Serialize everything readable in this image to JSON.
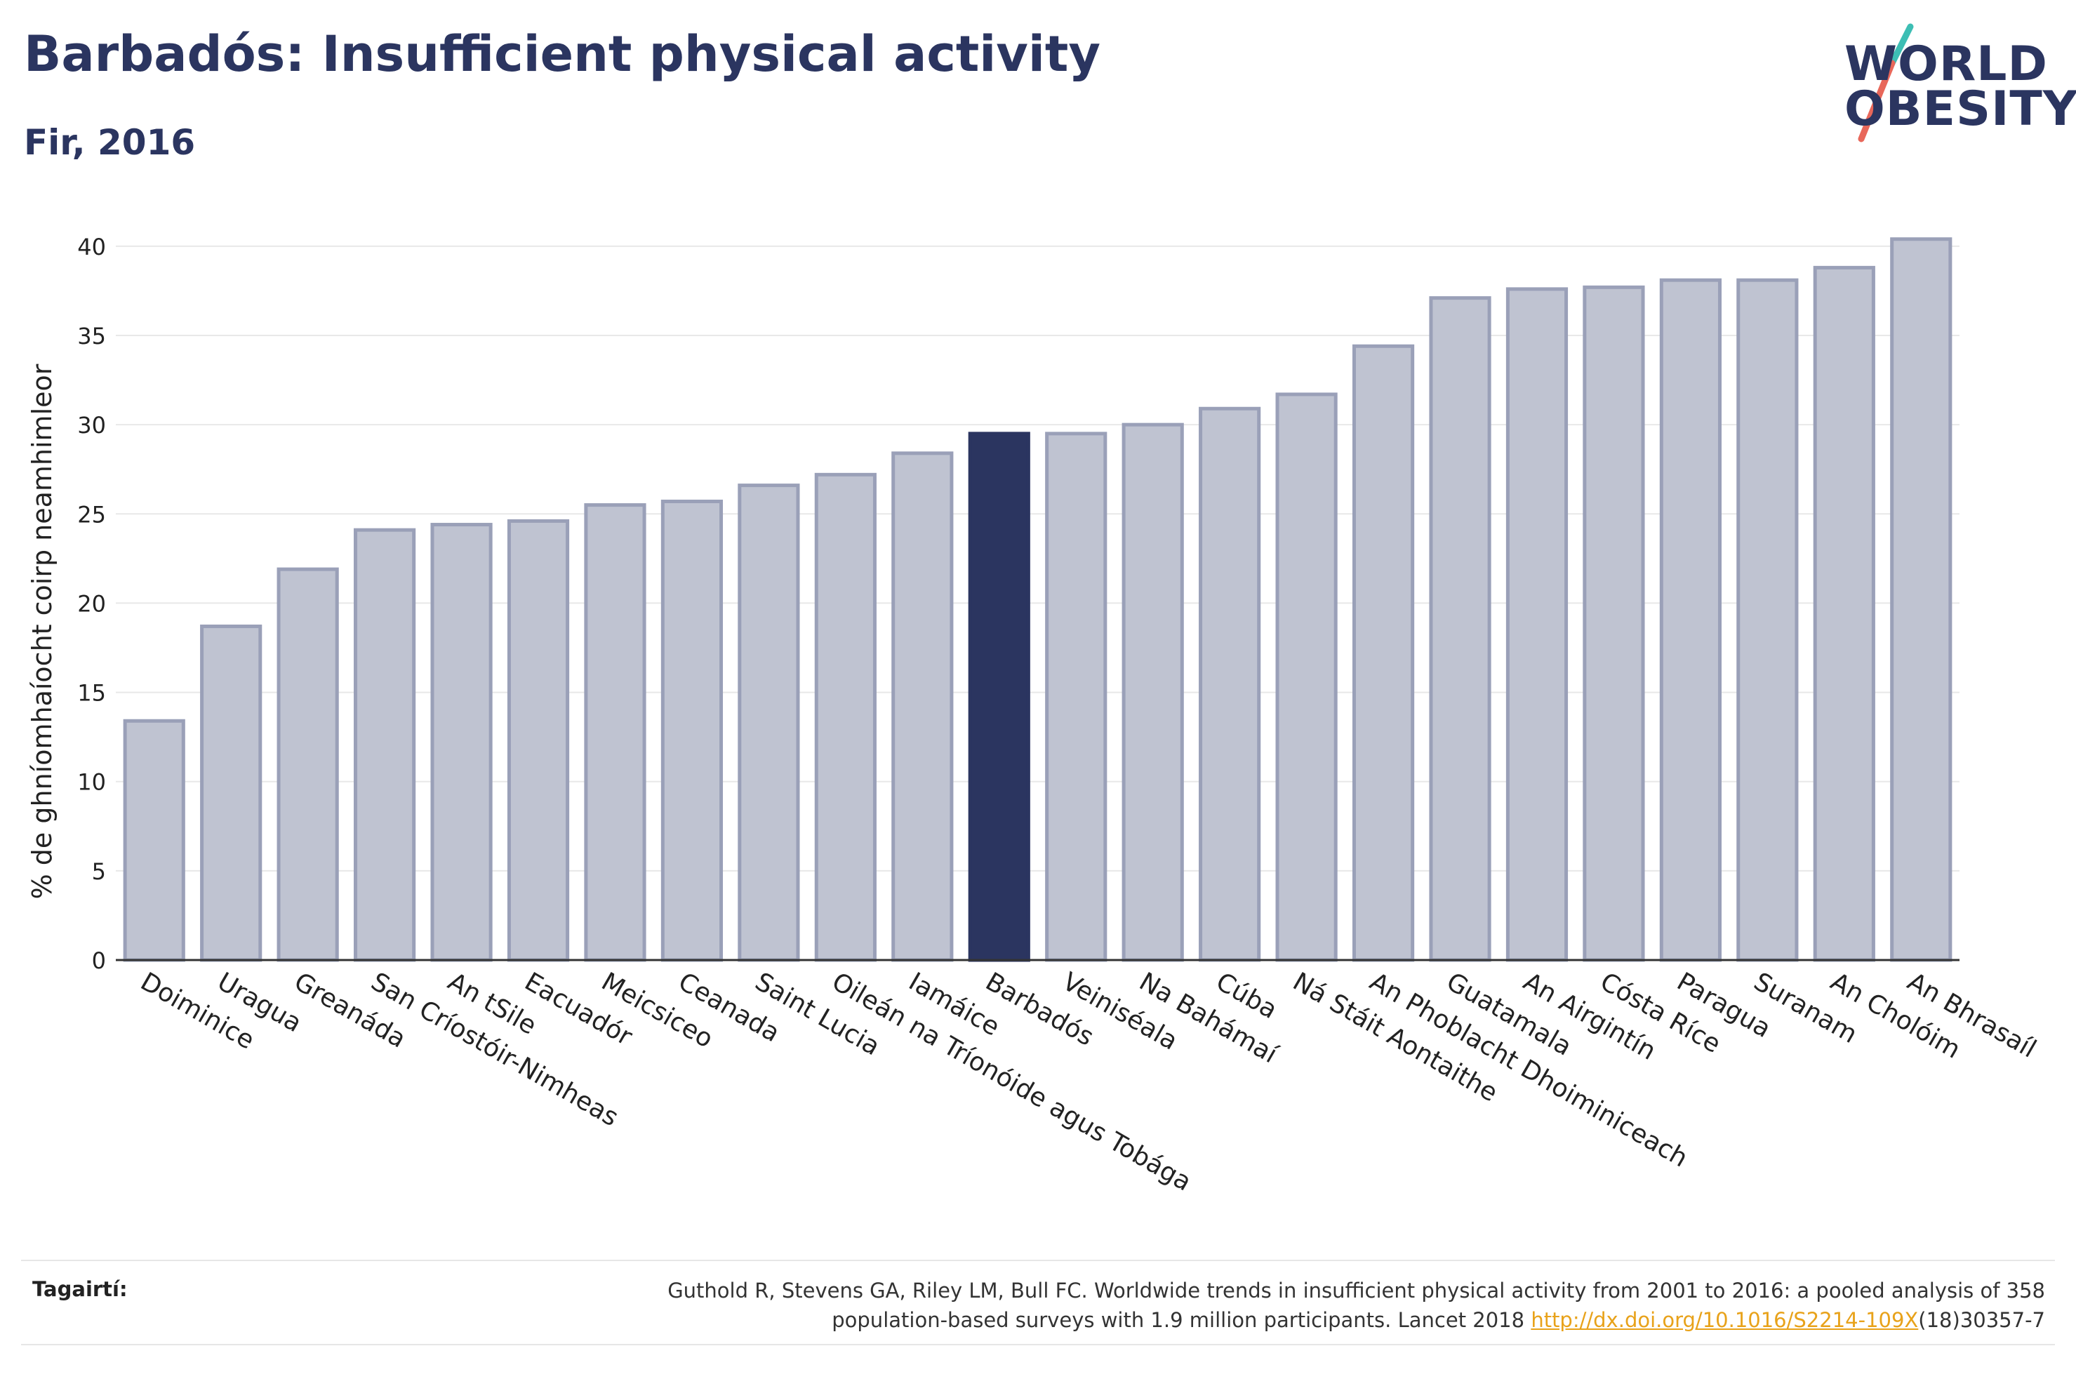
{
  "header": {
    "title": "Barbadós: Insufficient physical activity",
    "subtitle": "Fir, 2016"
  },
  "logo": {
    "line1": "WORLD",
    "line2": "OBESITY",
    "colors": {
      "text": "#2b3560",
      "slash_top": "#3dbeb4",
      "slash_bottom": "#e8675a"
    }
  },
  "colors": {
    "bar_fill": "#bfc3d1",
    "bar_stroke": "#9aa0b8",
    "highlight": "#2b3560",
    "grid": "#e8e8e8",
    "axis": "#333333",
    "text": "#222222"
  },
  "chart_data": {
    "type": "bar",
    "title": "Barbadós: Insufficient physical activity",
    "subtitle": "Fir, 2016",
    "xlabel": "",
    "ylabel": "% de ghníomhaíocht coirp neamhimleor",
    "ylim": [
      0,
      42
    ],
    "yticks": [
      0,
      5,
      10,
      15,
      20,
      25,
      30,
      35,
      40
    ],
    "grid": true,
    "highlight_category": "Barbadós",
    "categories": [
      "Doiminice",
      "Uragua",
      "Greanáda",
      "San Críostóir-Nimheas",
      "An tSile",
      "Eacuadór",
      "Meicsiceo",
      "Ceanada",
      "Saint Lucia",
      "Oileán na Tríonóide agus Tobága",
      "Iamáice",
      "Barbadós",
      "Veiniséala",
      "Na Bahámaí",
      "Cúba",
      "Ná Stáit Aontaithe",
      "An Phoblacht Dhoiminiceach",
      "Guatamala",
      "An Airgintín",
      "Cósta Ríce",
      "Paragua",
      "Suranam",
      "An Cholóim",
      "An Bhrasaíl"
    ],
    "values": [
      13.4,
      18.7,
      21.9,
      24.1,
      24.4,
      24.6,
      25.5,
      25.7,
      26.6,
      27.2,
      28.4,
      29.5,
      29.5,
      30.0,
      30.9,
      31.7,
      34.4,
      37.1,
      37.6,
      37.7,
      38.1,
      38.1,
      38.8,
      40.4
    ]
  },
  "footer": {
    "label": "Tagairtí:",
    "reference_line1": "Guthold R, Stevens GA, Riley LM, Bull FC. Worldwide trends in insufficient physical activity from 2001 to 2016: a pooled analysis of 358",
    "reference_line2_pre": "population-based surveys with 1.9 million participants. Lancet 2018 ",
    "reference_link": "http://dx.doi.org/10.1016/S2214-109X",
    "reference_line2_post": "(18)30357-7"
  }
}
